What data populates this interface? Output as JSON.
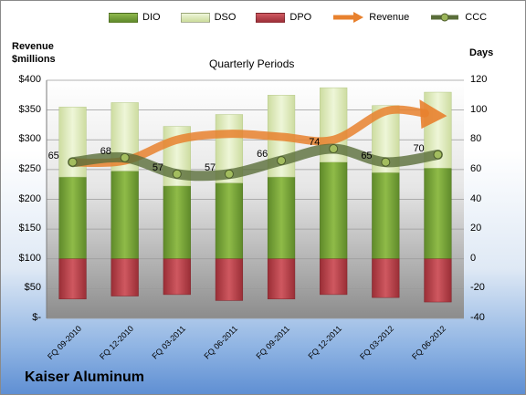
{
  "chart_data": {
    "type": "bar",
    "title": "Quarterly Periods",
    "company": "Kaiser Aluminum",
    "ylabel_left": "Revenue\n$millions",
    "ylabel_right": "Days",
    "categories": [
      "FQ 09-2010",
      "FQ 12-2010",
      "FQ 03-2011",
      "FQ 06-2011",
      "FQ 09-2011",
      "FQ 12-2011",
      "FQ 03-2012",
      "FQ 06-2012"
    ],
    "y_left_ticks": [
      "$400",
      "$350",
      "$300",
      "$250",
      "$200",
      "$150",
      "$100",
      "$50",
      "$-"
    ],
    "y_right_ticks": [
      "120",
      "100",
      "80",
      "60",
      "40",
      "20",
      "0",
      "-20",
      "-40"
    ],
    "ylim_left": [
      0,
      400
    ],
    "ylim_right": [
      -40,
      120
    ],
    "series": [
      {
        "name": "DIO",
        "kind": "stacked-bar",
        "color": "#77a03a",
        "values": [
          55,
          59,
          49,
          51,
          55,
          65,
          58,
          61
        ]
      },
      {
        "name": "DSO",
        "kind": "stacked-bar",
        "color": "#d7e4b5",
        "values": [
          47,
          46,
          40,
          46,
          55,
          50,
          45,
          51
        ]
      },
      {
        "name": "DPO",
        "kind": "negative-bar",
        "color": "#b9424a",
        "values": [
          -27,
          -25,
          -24,
          -28,
          -27,
          -24,
          -26,
          -29
        ]
      },
      {
        "name": "Revenue",
        "kind": "arrow-line",
        "color": "#e8812e",
        "axis": "left",
        "values": [
          262,
          265,
          300,
          310,
          305,
          300,
          348,
          340
        ]
      },
      {
        "name": "CCC",
        "kind": "line",
        "color": "#5a6e3a",
        "axis": "right",
        "values": [
          65,
          68,
          57,
          57,
          66,
          74,
          65,
          70
        ]
      }
    ]
  }
}
